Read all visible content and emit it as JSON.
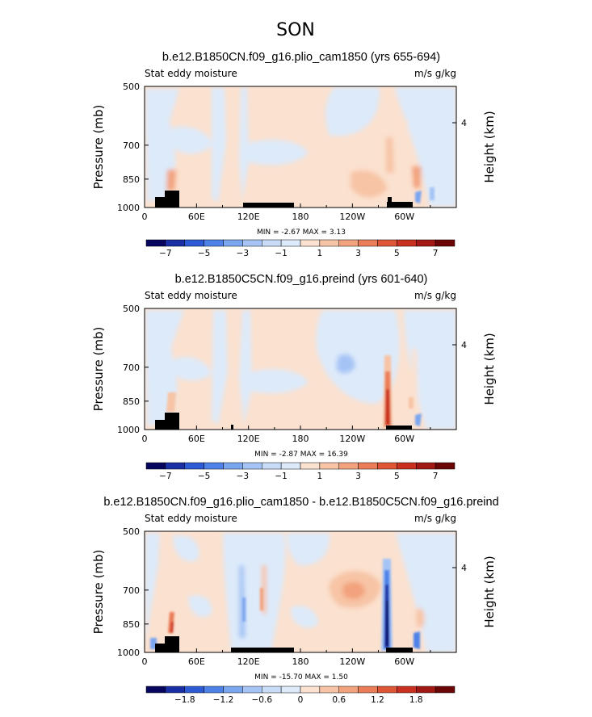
{
  "figure_title": "SON",
  "chart_data": [
    {
      "type": "heatmap",
      "title": "b.e12.B1850CN.f09_g16.plio_cam1850 (yrs 655-694)",
      "left_label": "Stat eddy moisture",
      "right_label": "m/s g/kg",
      "ylabel": "Pressure (mb)",
      "ylabel_right": "Height (km)",
      "x_ticks": [
        "0",
        "60E",
        "120E",
        "180",
        "120W",
        "60W"
      ],
      "x_values": [
        0,
        60,
        120,
        180,
        240,
        300
      ],
      "xlim": [
        0,
        360
      ],
      "y_ticks": [
        "500",
        "700",
        "850",
        "1000"
      ],
      "y_values": [
        500,
        700,
        850,
        1000
      ],
      "ylim": [
        1000,
        500
      ],
      "height_ticks": [
        "4"
      ],
      "min": "-2.67",
      "max": "3.13",
      "minmax_text": "MIN =   -2.67   MAX =    3.13",
      "colorbar_labels": [
        "-7",
        "-5",
        "-3",
        "-1",
        "1",
        "3",
        "5",
        "7"
      ],
      "colorbar_levels": [
        -8,
        -7,
        -6,
        -5,
        -4,
        -3,
        -2,
        -1,
        1,
        2,
        3,
        4,
        5,
        6,
        7,
        8
      ]
    },
    {
      "type": "heatmap",
      "title": "b.e12.B1850C5CN.f09_g16.preind (yrs 601-640)",
      "left_label": "Stat eddy moisture",
      "right_label": "m/s g/kg",
      "ylabel": "Pressure (mb)",
      "ylabel_right": "Height (km)",
      "x_ticks": [
        "0",
        "60E",
        "120E",
        "180",
        "120W",
        "60W"
      ],
      "x_values": [
        0,
        60,
        120,
        180,
        240,
        300
      ],
      "xlim": [
        0,
        360
      ],
      "y_ticks": [
        "500",
        "700",
        "850",
        "1000"
      ],
      "y_values": [
        500,
        700,
        850,
        1000
      ],
      "ylim": [
        1000,
        500
      ],
      "height_ticks": [
        "4"
      ],
      "min": "-2.87",
      "max": "16.39",
      "minmax_text": "MIN =   -2.87   MAX =   16.39",
      "colorbar_labels": [
        "-7",
        "-5",
        "-3",
        "-1",
        "1",
        "3",
        "5",
        "7"
      ],
      "colorbar_levels": [
        -8,
        -7,
        -6,
        -5,
        -4,
        -3,
        -2,
        -1,
        1,
        2,
        3,
        4,
        5,
        6,
        7,
        8
      ]
    },
    {
      "type": "heatmap",
      "title": "b.e12.B1850CN.f09_g16.plio_cam1850 - b.e12.B1850C5CN.f09_g16.preind",
      "left_label": "Stat eddy moisture",
      "right_label": "m/s g/kg",
      "ylabel": "Pressure (mb)",
      "ylabel_right": "Height (km)",
      "x_ticks": [
        "0",
        "60E",
        "120E",
        "180",
        "120W",
        "60W"
      ],
      "x_values": [
        0,
        60,
        120,
        180,
        240,
        300
      ],
      "xlim": [
        0,
        360
      ],
      "y_ticks": [
        "500",
        "700",
        "850",
        "1000"
      ],
      "y_values": [
        500,
        700,
        850,
        1000
      ],
      "ylim": [
        1000,
        500
      ],
      "height_ticks": [
        "4"
      ],
      "min": "-15.70",
      "max": "1.50",
      "minmax_text": "MIN = -15.70   MAX =    1.50",
      "colorbar_labels": [
        "-1.8",
        "-1.2",
        "-0.6",
        "0",
        "0.6",
        "1.2",
        "1.8"
      ],
      "colorbar_levels": [
        -2.4,
        -2.1,
        -1.8,
        -1.5,
        -1.2,
        -0.9,
        -0.6,
        -0.3,
        0,
        0.3,
        0.6,
        0.9,
        1.2,
        1.5,
        1.8,
        2.1,
        2.4
      ]
    }
  ],
  "palette": [
    "#06065e",
    "#1a2fa3",
    "#2d5bd6",
    "#4e82e8",
    "#7aa6f0",
    "#a5c4f5",
    "#c8dcf8",
    "#ddeafa",
    "#fbe1cf",
    "#f7c4a6",
    "#f2a27d",
    "#eb7d58",
    "#df5637",
    "#c9301f",
    "#a11814",
    "#6b0606"
  ]
}
